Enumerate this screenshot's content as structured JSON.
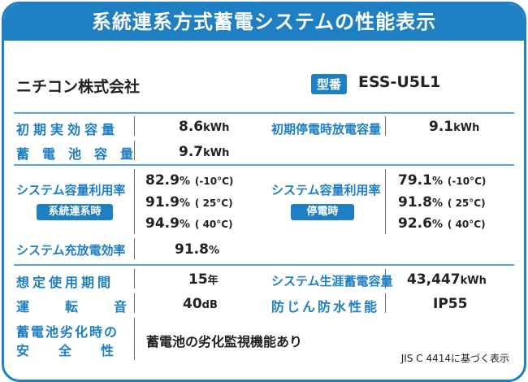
{
  "title": "系統連系方式蓄電システムの性能表示",
  "maker": "ニチコン株式会社",
  "model_label": "型番",
  "model_value": "ESS-U5L1",
  "rows": {
    "initial_capacity": {
      "label": "初期実効容量",
      "value": "8.6",
      "unit": "kWh"
    },
    "outage_capacity": {
      "label": "初期停電時放電容量",
      "value": "9.1",
      "unit": "kWh"
    },
    "battery_capacity": {
      "label": "蓄電池容量",
      "value": "9.7",
      "unit": "kWh"
    },
    "util_grid": {
      "label": "システム容量利用率",
      "badge": "系統連系時",
      "values": [
        {
          "pct": "82.9",
          "unit": "%",
          "cond": "(-10°C)"
        },
        {
          "pct": "91.9",
          "unit": "%",
          "cond": "( 25°C)"
        },
        {
          "pct": "94.9",
          "unit": "%",
          "cond": "( 40°C)"
        }
      ]
    },
    "util_outage": {
      "label": "システム容量利用率",
      "badge": "停電時",
      "values": [
        {
          "pct": "79.1",
          "unit": "%",
          "cond": "(-10°C)"
        },
        {
          "pct": "91.8",
          "unit": "%",
          "cond": "( 25°C)"
        },
        {
          "pct": "92.6",
          "unit": "%",
          "cond": "( 40°C)"
        }
      ]
    },
    "charge_eff": {
      "label": "システム充放電効率",
      "value": "91.8",
      "unit": "%"
    },
    "lifetime": {
      "label": "想定使用期間",
      "value": "15",
      "unit": "年"
    },
    "lifetime_storage": {
      "label": "システム生涯蓄電容量",
      "value": "43,447",
      "unit": "kWh"
    },
    "noise": {
      "label": "運転音",
      "value": "40",
      "unit": "dB"
    },
    "waterproof": {
      "label": "防じん防水性能",
      "value": "IP55"
    },
    "safety": {
      "label_line1": "蓄電池劣化時の",
      "label_line2": "安全性",
      "value": "蓄電池の劣化監視機能あり"
    }
  },
  "footnote": "JIS C 4414に基づく表示"
}
